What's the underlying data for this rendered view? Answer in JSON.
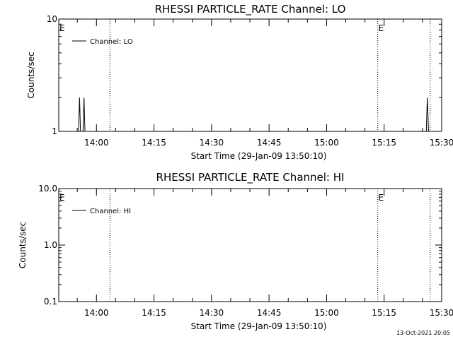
{
  "chart_data": [
    {
      "type": "line",
      "title": "RHESSI PARTICLE_RATE Channel: LO",
      "xlabel": "Start Time (29-Jan-09 13:50:10)",
      "ylabel": "Counts/sec",
      "y_scale": "log",
      "ylim": [
        1,
        10
      ],
      "y_ticks": [
        "10",
        "1"
      ],
      "xlim": [
        "13:50:10",
        "15:30:00"
      ],
      "x_ticks": [
        "14:00",
        "14:15",
        "14:30",
        "14:45",
        "15:00",
        "15:15",
        "15:30"
      ],
      "legend": {
        "entries": [
          "Channel: LO"
        ],
        "position": "top-left"
      },
      "event_lines": [
        {
          "time": "14:03:30",
          "label": ""
        },
        {
          "time": "15:13:20",
          "label": "E"
        },
        {
          "time": "15:27:00",
          "label": ""
        }
      ],
      "start_marker": "E",
      "series": [
        {
          "name": "Channel: LO",
          "points": [
            [
              "13:55:20",
              1
            ],
            [
              "13:55:35",
              2
            ],
            [
              "13:55:50",
              1
            ],
            [
              "13:56:30",
              1
            ],
            [
              "13:56:45",
              2
            ],
            [
              "13:57:00",
              1
            ],
            [
              "15:26:00",
              1
            ],
            [
              "15:26:15",
              2
            ],
            [
              "15:26:35",
              1
            ]
          ]
        }
      ]
    },
    {
      "type": "line",
      "title": "RHESSI PARTICLE_RATE Channel: HI",
      "xlabel": "Start Time (29-Jan-09 13:50:10)",
      "ylabel": "Counts/sec",
      "y_scale": "log",
      "ylim": [
        0.1,
        10
      ],
      "y_ticks": [
        "10.0",
        "1.0",
        "0.1"
      ],
      "xlim": [
        "13:50:10",
        "15:30:00"
      ],
      "x_ticks": [
        "14:00",
        "14:15",
        "14:30",
        "14:45",
        "15:00",
        "15:15",
        "15:30"
      ],
      "legend": {
        "entries": [
          "Channel: HI"
        ],
        "position": "top-left"
      },
      "event_lines": [
        {
          "time": "14:03:30",
          "label": ""
        },
        {
          "time": "15:13:20",
          "label": "E"
        },
        {
          "time": "15:27:00",
          "label": ""
        }
      ],
      "start_marker": "E",
      "series": [
        {
          "name": "Channel: HI",
          "points": []
        }
      ]
    }
  ],
  "footer": {
    "timestamp": "13-Oct-2021 20:05"
  }
}
